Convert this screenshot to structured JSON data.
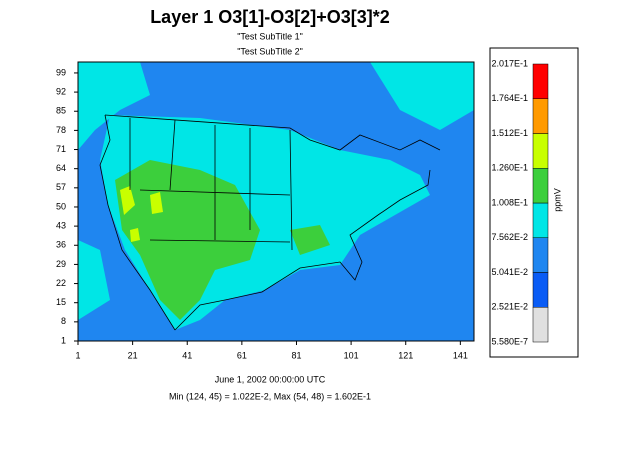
{
  "title": "Layer 1 O3[1]-O3[2]+O3[3]*2",
  "subtitles": [
    "\"Test SubTitle 1\"",
    "\"Test SubTitle 2\""
  ],
  "axes": {
    "xlim": [
      1,
      146
    ],
    "xticks": [
      1,
      21,
      41,
      61,
      81,
      101,
      121,
      141
    ],
    "ylim": [
      1,
      103
    ],
    "yticks": [
      1,
      8,
      15,
      22,
      29,
      36,
      43,
      50,
      57,
      64,
      71,
      78,
      85,
      92,
      99
    ]
  },
  "legend": {
    "unit": "ppmV",
    "levels": [
      {
        "value": 5.58e-07,
        "label": "5.580E-7"
      },
      {
        "value": 0.02521,
        "label": "2.521E-2"
      },
      {
        "value": 0.05041,
        "label": "5.041E-2"
      },
      {
        "value": 0.07562,
        "label": "7.562E-2"
      },
      {
        "value": 0.1008,
        "label": "1.008E-1"
      },
      {
        "value": 0.126,
        "label": "1.260E-1"
      },
      {
        "value": 0.1512,
        "label": "1.512E-1"
      },
      {
        "value": 0.1764,
        "label": "1.764E-1"
      },
      {
        "value": 0.2017,
        "label": "2.017E-1"
      }
    ],
    "colors": [
      "#e0e0e0",
      "#0a5cf5",
      "#1f86f0",
      "#00e6e6",
      "#3ccf3c",
      "#c8ff00",
      "#ff9a00",
      "#ff0000"
    ]
  },
  "footer": [
    "June 1, 2002 00:00:00 UTC",
    "Min (124, 45) = 1.022E-2, Max (54, 48) = 1.602E-1"
  ]
}
